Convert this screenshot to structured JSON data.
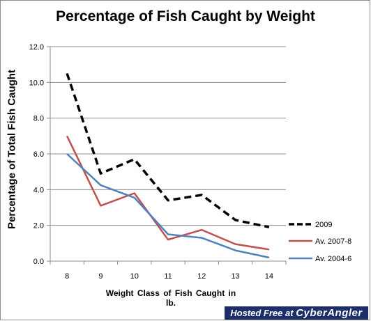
{
  "chart_data": {
    "type": "line",
    "title": "Percentage of Fish Caught by Weight",
    "xlabel": "Weight Class of Fish Caught in lb.",
    "ylabel": "Percentage of Total Fish Caught",
    "categories": [
      "8",
      "9",
      "10",
      "11",
      "12",
      "13",
      "14"
    ],
    "ylim": [
      0,
      12
    ],
    "yticks": [
      "0.0",
      "2.0",
      "4.0",
      "6.0",
      "8.0",
      "10.0",
      "12.0"
    ],
    "grid": true,
    "legend": "right",
    "series": [
      {
        "name": "2009",
        "values": [
          10.5,
          4.9,
          5.7,
          3.4,
          3.7,
          2.3,
          1.9
        ],
        "color": "#000000",
        "style": "dashed"
      },
      {
        "name": "Av. 2007-8",
        "values": [
          7.0,
          3.1,
          3.8,
          1.2,
          1.75,
          0.95,
          0.65
        ],
        "color": "#c0504d",
        "style": "solid"
      },
      {
        "name": "Av. 2004-6",
        "values": [
          6.0,
          4.25,
          3.55,
          1.5,
          1.3,
          0.6,
          0.2
        ],
        "color": "#4f81bd",
        "style": "solid"
      }
    ]
  },
  "watermark": {
    "prefix": "Hosted Free at",
    "brand": "CyberAngler"
  }
}
